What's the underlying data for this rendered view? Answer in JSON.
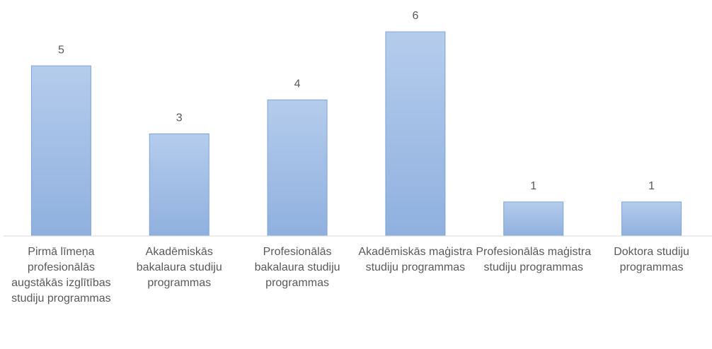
{
  "chart_data": {
    "type": "bar",
    "categories": [
      "Pirmā līmeņa profesionālās augstākās izglītības studiju programmas",
      "Akadēmiskās bakalaura studiju programmas",
      "Profesionālās bakalaura studiju programmas",
      "Akadēmiskās maģistra studiju programmas",
      "Profesionālās maģistra studiju programmas",
      "Doktora studiju programmas"
    ],
    "values": [
      5,
      3,
      4,
      6,
      1,
      1
    ],
    "color": "#9dbbe4",
    "ylim": [
      0,
      6
    ]
  }
}
